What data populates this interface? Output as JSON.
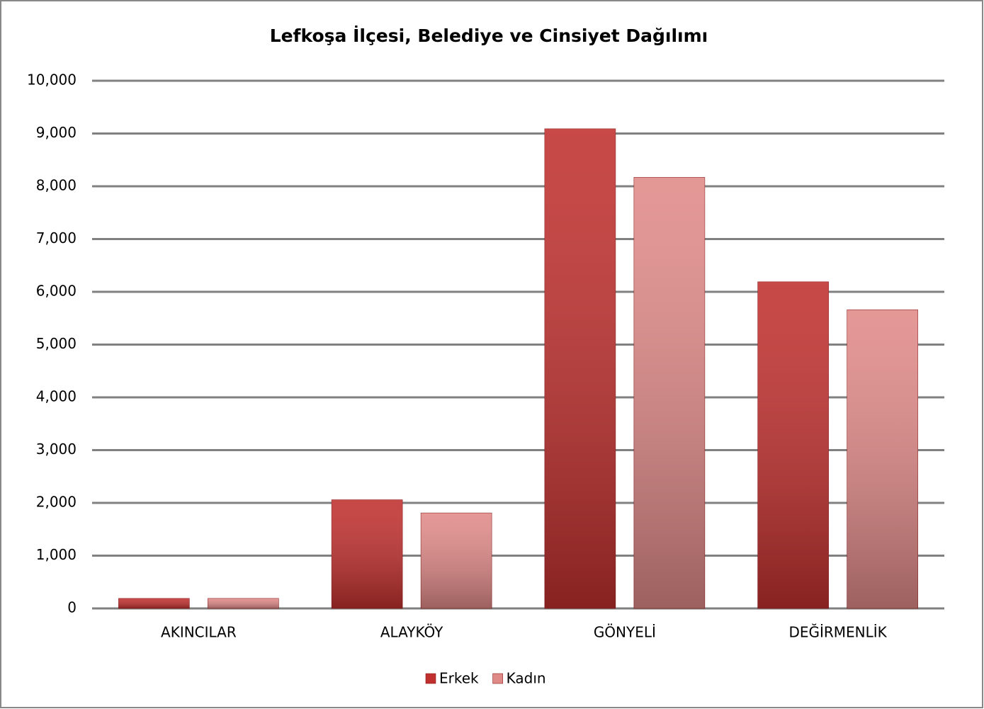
{
  "chart_data": {
    "type": "bar",
    "title": "Lefkoşa İlçesi, Belediye ve Cinsiyet Dağılımı",
    "categories": [
      "AKINCILAR",
      "ALAYKÖY",
      "GÖNYELİ",
      "DEĞİRMENLİK"
    ],
    "series": [
      {
        "name": "Erkek",
        "color": "#c0302e",
        "values": [
          190,
          2060,
          9090,
          6190
        ]
      },
      {
        "name": "Kadın",
        "color": "#e08a88",
        "values": [
          190,
          1810,
          8170,
          5660
        ]
      }
    ],
    "ylim": [
      0,
      10000
    ],
    "yticks": [
      0,
      {
        "value": 1000,
        "label": "1,000"
      },
      {
        "value": 2000,
        "label": "2,000"
      },
      {
        "value": 3000,
        "label": "3,000"
      },
      {
        "value": 4000,
        "label": "4,000"
      },
      {
        "value": 5000,
        "label": "5,000"
      },
      {
        "value": 6000,
        "label": "6,000"
      },
      {
        "value": 7000,
        "label": "7,000"
      },
      {
        "value": 8000,
        "label": "8,000"
      },
      {
        "value": 9000,
        "label": "9,000"
      },
      {
        "value": 10000,
        "label": "10,000"
      }
    ],
    "grid": true,
    "legend": "bottom"
  }
}
